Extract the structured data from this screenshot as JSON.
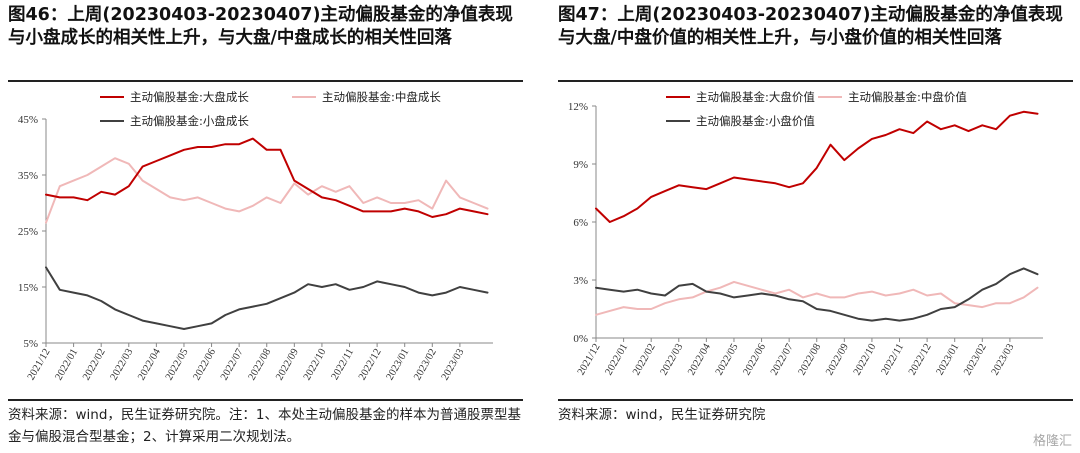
{
  "watermark": "格隆汇",
  "colors": {
    "large": "#c00000",
    "mid": "#f0b8b8",
    "small": "#404040",
    "axis": "#888888"
  },
  "chart_data": [
    {
      "type": "line",
      "title": "图46：上周(20230403-20230407)主动偏股基金的净值表现与小盘成长的相关性上升，与大盘/中盘成长的相关性回落",
      "source": "资料来源：wind，民生证券研究院。注：1、本处主动偏股基金的样本为普通股票型基金与偏股混合型基金；2、计算采用二次规划法。",
      "ylim": [
        5,
        45
      ],
      "yticks": [
        5,
        15,
        25,
        35,
        45
      ],
      "ytick_labels": [
        "5%",
        "15%",
        "25%",
        "35%",
        "45%"
      ],
      "xlim": [
        0,
        16.2
      ],
      "xtick_labels": [
        "2021/12",
        "2022/01",
        "2022/02",
        "2022/03",
        "2022/04",
        "2022/05",
        "2022/06",
        "2022/07",
        "2022/08",
        "2022/09",
        "2022/10",
        "2022/11",
        "2022/12",
        "2023/01",
        "2023/02",
        "2023/03"
      ],
      "series": [
        {
          "name": "主动偏股基金:大盘成长",
          "color_key": "large",
          "x": [
            0,
            0.5,
            1,
            1.5,
            2,
            2.5,
            3,
            3.5,
            4,
            4.5,
            5,
            5.5,
            6,
            6.5,
            7,
            7.5,
            8,
            8.5,
            9,
            9.5,
            10,
            10.5,
            11,
            11.5,
            12,
            12.5,
            13,
            13.5,
            14,
            14.5,
            15,
            15.5,
            16
          ],
          "y": [
            31.5,
            31,
            31,
            30.5,
            32,
            31.5,
            33,
            36.5,
            37.5,
            38.5,
            39.5,
            40,
            40,
            40.5,
            40.5,
            41.5,
            39.5,
            39.5,
            34,
            32.5,
            31,
            30.5,
            29.5,
            28.5,
            28.5,
            28.5,
            29,
            28.5,
            27.5,
            28,
            29,
            28.5,
            28
          ]
        },
        {
          "name": "主动偏股基金:中盘成长",
          "color_key": "mid",
          "x": [
            0,
            0.5,
            1,
            1.5,
            2,
            2.5,
            3,
            3.5,
            4,
            4.5,
            5,
            5.5,
            6,
            6.5,
            7,
            7.5,
            8,
            8.5,
            9,
            9.5,
            10,
            10.5,
            11,
            11.5,
            12,
            12.5,
            13,
            13.5,
            14,
            14.5,
            15,
            15.5,
            16
          ],
          "y": [
            26.5,
            33,
            34,
            35,
            36.5,
            38,
            37,
            34,
            32.5,
            31,
            30.5,
            31,
            30,
            29,
            28.5,
            29.5,
            31,
            30,
            33.5,
            31.5,
            33,
            32,
            33,
            30,
            31,
            30,
            30,
            30.5,
            29,
            34,
            31,
            30,
            29
          ]
        },
        {
          "name": "主动偏股基金:小盘成长",
          "color_key": "small",
          "x": [
            0,
            0.5,
            1,
            1.5,
            2,
            2.5,
            3,
            3.5,
            4,
            4.5,
            5,
            5.5,
            6,
            6.5,
            7,
            7.5,
            8,
            8.5,
            9,
            9.5,
            10,
            10.5,
            11,
            11.5,
            12,
            12.5,
            13,
            13.5,
            14,
            14.5,
            15,
            15.5,
            16
          ],
          "y": [
            18.5,
            14.5,
            14,
            13.5,
            12.5,
            11,
            10,
            9,
            8.5,
            8,
            7.5,
            8,
            8.5,
            10,
            11,
            11.5,
            12,
            13,
            14,
            15.5,
            15,
            15.5,
            14.5,
            15,
            16,
            15.5,
            15,
            14,
            13.5,
            14,
            15,
            14.5,
            14
          ]
        }
      ]
    },
    {
      "type": "line",
      "title": "图47：上周(20230403-20230407)主动偏股基金的净值表现与大盘/中盘价值的相关性上升，与小盘价值的相关性回落",
      "source": "资料来源：wind，民生证券研究院",
      "ylim": [
        0,
        12
      ],
      "yticks": [
        0,
        3,
        6,
        9,
        12
      ],
      "ytick_labels": [
        "0%",
        "3%",
        "6%",
        "9%",
        "12%"
      ],
      "xlim": [
        0,
        16.2
      ],
      "xtick_labels": [
        "2021/12",
        "2022/01",
        "2022/02",
        "2022/03",
        "2022/04",
        "2022/05",
        "2022/06",
        "2022/07",
        "2022/08",
        "2022/09",
        "2022/10",
        "2022/11",
        "2022/12",
        "2023/01",
        "2023/02",
        "2023/03"
      ],
      "series": [
        {
          "name": "主动偏股基金:大盘价值",
          "color_key": "large",
          "x": [
            0,
            0.5,
            1,
            1.5,
            2,
            2.5,
            3,
            3.5,
            4,
            4.5,
            5,
            5.5,
            6,
            6.5,
            7,
            7.5,
            8,
            8.5,
            9,
            9.5,
            10,
            10.5,
            11,
            11.5,
            12,
            12.5,
            13,
            13.5,
            14,
            14.5,
            15,
            15.5,
            16
          ],
          "y": [
            6.7,
            6,
            6.3,
            6.7,
            7.3,
            7.6,
            7.9,
            7.8,
            7.7,
            8,
            8.3,
            8.2,
            8.1,
            8,
            7.8,
            8,
            8.8,
            10,
            9.2,
            9.8,
            10.3,
            10.5,
            10.8,
            10.6,
            11.2,
            10.8,
            11,
            10.7,
            11,
            10.8,
            11.5,
            11.7,
            11.6
          ]
        },
        {
          "name": "主动偏股基金:中盘价值",
          "color_key": "mid",
          "x": [
            0,
            0.5,
            1,
            1.5,
            2,
            2.5,
            3,
            3.5,
            4,
            4.5,
            5,
            5.5,
            6,
            6.5,
            7,
            7.5,
            8,
            8.5,
            9,
            9.5,
            10,
            10.5,
            11,
            11.5,
            12,
            12.5,
            13,
            13.5,
            14,
            14.5,
            15,
            15.5,
            16
          ],
          "y": [
            1.2,
            1.4,
            1.6,
            1.5,
            1.5,
            1.8,
            2,
            2.1,
            2.4,
            2.6,
            2.9,
            2.7,
            2.5,
            2.3,
            2.5,
            2.1,
            2.3,
            2.1,
            2.1,
            2.3,
            2.4,
            2.2,
            2.3,
            2.5,
            2.2,
            2.3,
            1.8,
            1.7,
            1.6,
            1.8,
            1.8,
            2.1,
            2.6
          ]
        },
        {
          "name": "主动偏股基金:小盘价值",
          "color_key": "small",
          "x": [
            0,
            0.5,
            1,
            1.5,
            2,
            2.5,
            3,
            3.5,
            4,
            4.5,
            5,
            5.5,
            6,
            6.5,
            7,
            7.5,
            8,
            8.5,
            9,
            9.5,
            10,
            10.5,
            11,
            11.5,
            12,
            12.5,
            13,
            13.5,
            14,
            14.5,
            15,
            15.5,
            16
          ],
          "y": [
            2.6,
            2.5,
            2.4,
            2.5,
            2.3,
            2.2,
            2.7,
            2.8,
            2.4,
            2.3,
            2.1,
            2.2,
            2.3,
            2.2,
            2,
            1.9,
            1.5,
            1.4,
            1.2,
            1,
            0.9,
            1,
            0.9,
            1,
            1.2,
            1.5,
            1.6,
            2,
            2.5,
            2.8,
            3.3,
            3.6,
            3.3
          ]
        }
      ]
    }
  ]
}
